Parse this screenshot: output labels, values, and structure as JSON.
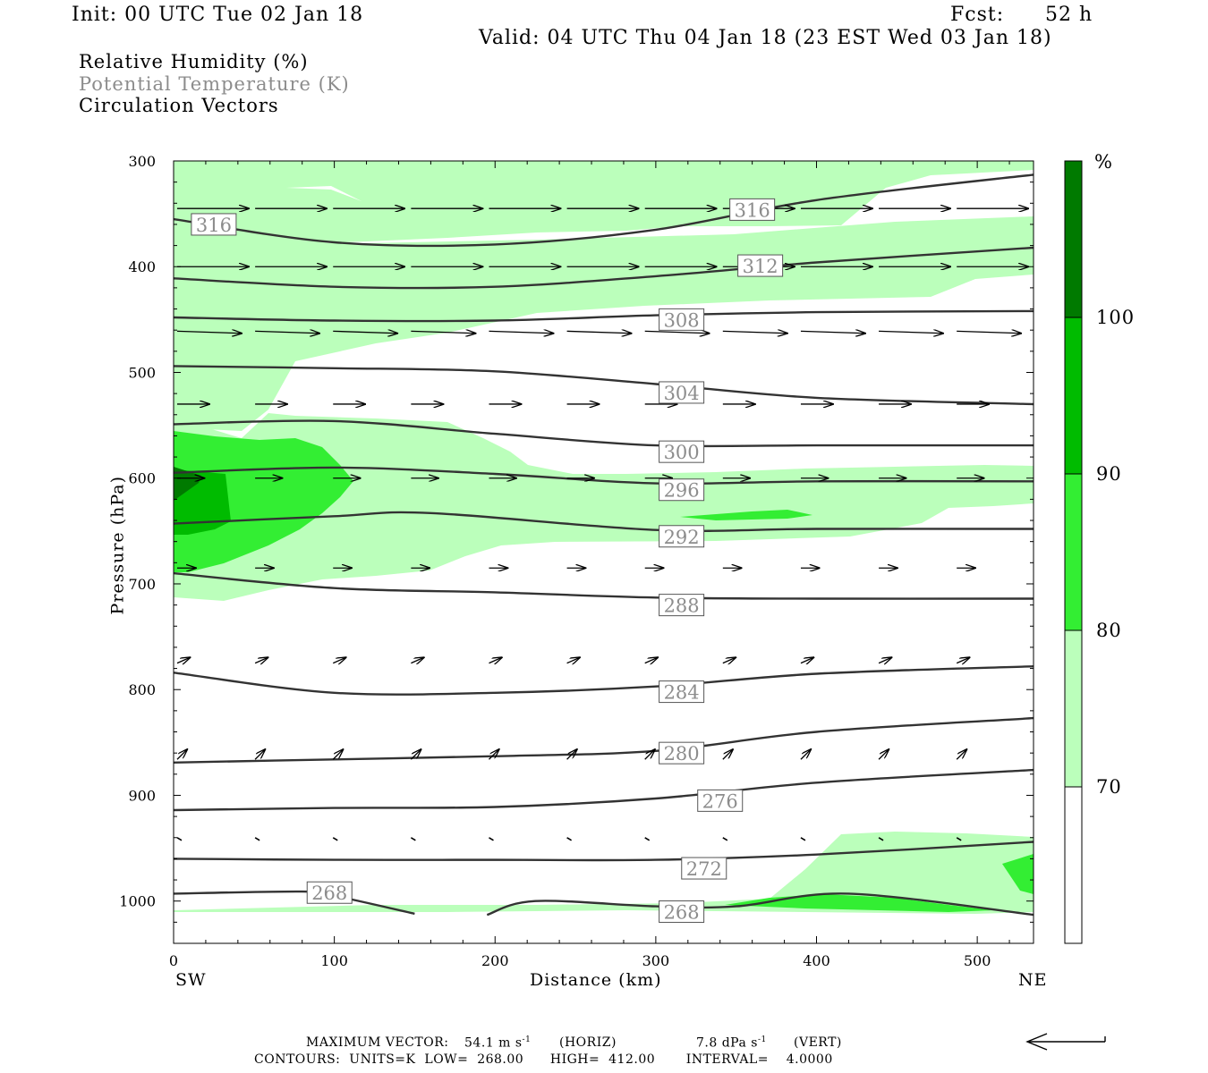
{
  "header": {
    "init": "Init: 00 UTC Tue 02 Jan 18",
    "fcst_label": "Fcst:",
    "fcst_value": "52 h",
    "valid": "Valid: 04 UTC Thu 04 Jan 18 (23 EST Wed 03 Jan 18)"
  },
  "legend": {
    "rh": "Relative Humidity (%)",
    "theta": "Potential Temperature (K)",
    "vectors": "Circulation Vectors"
  },
  "colors": {
    "rh_70_80": "#bbffbb",
    "rh_80_90": "#33ee33",
    "rh_90_100": "#00bb00",
    "rh_100": "#007a00",
    "contour": "#333333",
    "theta_label": "#8c8c8c"
  },
  "colorbar": {
    "unit": "%",
    "levels": [
      "70",
      "80",
      "90",
      "100"
    ]
  },
  "footer": {
    "max_vector_label": "MAXIMUM VECTOR:",
    "horiz_value": "54.1 m s",
    "horiz_tag": "(HORIZ)",
    "vert_value": "7.8 dPa s",
    "vert_tag": "(VERT)",
    "exponent": "-1",
    "contours": "CONTOURS:  UNITS=K  LOW=  268.00      HIGH=  412.00       INTERVAL=    4.0000"
  },
  "chart_data": {
    "type": "cross-section",
    "xlabel": "Distance (km)",
    "ylabel": "Pressure (hPa)",
    "x_end_labels": [
      "SW",
      "NE"
    ],
    "xlim": [
      0,
      535
    ],
    "ylim": [
      300,
      1040
    ],
    "y_scale": "linear (pressure, inverted)",
    "x_ticks": [
      0,
      100,
      200,
      300,
      400,
      500
    ],
    "y_ticks": [
      300,
      400,
      500,
      600,
      700,
      800,
      900,
      1000
    ],
    "grid": false,
    "theta_contours": [
      {
        "label": "316",
        "label_at": [
          25,
          360
        ],
        "points": [
          [
            0,
            355
          ],
          [
            100,
            377
          ],
          [
            200,
            379
          ],
          [
            300,
            365
          ],
          [
            400,
            337
          ],
          [
            535,
            313
          ]
        ]
      },
      {
        "label": "316",
        "label_at": [
          360,
          346
        ],
        "points": []
      },
      {
        "label": "312",
        "label_at": [
          365,
          399
        ],
        "points": [
          [
            0,
            411
          ],
          [
            100,
            419
          ],
          [
            200,
            419
          ],
          [
            300,
            409
          ],
          [
            400,
            396
          ],
          [
            535,
            382
          ]
        ]
      },
      {
        "label": "308",
        "label_at": [
          316,
          450
        ],
        "points": [
          [
            0,
            448
          ],
          [
            100,
            451
          ],
          [
            200,
            451
          ],
          [
            300,
            446
          ],
          [
            400,
            443
          ],
          [
            535,
            442
          ]
        ]
      },
      {
        "label": "304",
        "label_at": [
          316,
          519
        ],
        "points": [
          [
            0,
            494
          ],
          [
            100,
            496
          ],
          [
            200,
            499
          ],
          [
            300,
            511
          ],
          [
            400,
            524
          ],
          [
            535,
            530
          ]
        ]
      },
      {
        "label": "300",
        "label_at": [
          316,
          575
        ],
        "points": [
          [
            0,
            549
          ],
          [
            100,
            546
          ],
          [
            200,
            558
          ],
          [
            300,
            569
          ],
          [
            400,
            569
          ],
          [
            535,
            569
          ]
        ]
      },
      {
        "label": "296",
        "label_at": [
          316,
          611
        ],
        "points": [
          [
            0,
            595
          ],
          [
            100,
            590
          ],
          [
            200,
            596
          ],
          [
            300,
            605
          ],
          [
            400,
            603
          ],
          [
            535,
            603
          ]
        ]
      },
      {
        "label": "292",
        "label_at": [
          316,
          655
        ],
        "points": [
          [
            0,
            643
          ],
          [
            100,
            636
          ],
          [
            160,
            633
          ],
          [
            300,
            649
          ],
          [
            400,
            648
          ],
          [
            535,
            648
          ]
        ]
      },
      {
        "label": "288",
        "label_at": [
          316,
          720
        ],
        "points": [
          [
            0,
            690
          ],
          [
            100,
            704
          ],
          [
            200,
            708
          ],
          [
            300,
            713
          ],
          [
            400,
            714
          ],
          [
            535,
            714
          ]
        ]
      },
      {
        "label": "284",
        "label_at": [
          316,
          802
        ],
        "points": [
          [
            0,
            784
          ],
          [
            100,
            803
          ],
          [
            200,
            803
          ],
          [
            300,
            797
          ],
          [
            400,
            785
          ],
          [
            535,
            778
          ]
        ]
      },
      {
        "label": "280",
        "label_at": [
          316,
          860
        ],
        "points": [
          [
            0,
            869
          ],
          [
            100,
            866
          ],
          [
            200,
            863
          ],
          [
            300,
            858
          ],
          [
            400,
            840
          ],
          [
            535,
            827
          ]
        ]
      },
      {
        "label": "276",
        "label_at": [
          340,
          905
        ],
        "points": [
          [
            0,
            914
          ],
          [
            100,
            912
          ],
          [
            200,
            911
          ],
          [
            300,
            903
          ],
          [
            400,
            888
          ],
          [
            535,
            876
          ]
        ]
      },
      {
        "label": "272",
        "label_at": [
          330,
          969
        ],
        "points": [
          [
            0,
            960
          ],
          [
            100,
            961
          ],
          [
            200,
            961
          ],
          [
            300,
            961
          ],
          [
            400,
            956
          ],
          [
            535,
            944
          ]
        ]
      },
      {
        "label": "268",
        "label_at": [
          97,
          992
        ],
        "points": [
          [
            0,
            993
          ],
          [
            80,
            991
          ],
          [
            100,
            995
          ],
          [
            150,
            1012
          ]
        ]
      },
      {
        "label": "268",
        "label_at": [
          316,
          1010
        ],
        "points": [
          [
            195,
            1013
          ],
          [
            225,
            1000
          ],
          [
            300,
            1005
          ],
          [
            350,
            1005
          ],
          [
            420,
            993
          ],
          [
            535,
            1013
          ]
        ]
      }
    ],
    "rh_regions": [
      {
        "rh": "70-80",
        "desc": "upper band 300-480 hPa, broad moist layer 480-710 hPa, low-level patch 930-1020 hPa"
      },
      {
        "rh": "80-90",
        "desc": "SW core 555-710 hPa (0-110 km), thin band ~640 hPa near 340-400 km, near-surface strip 400-480 km"
      },
      {
        "rh": "90-100",
        "desc": "SW core 580-660 hPa (0-35 km)"
      },
      {
        "rh": ">=100",
        "desc": "small patch ~600-650 hPa at x=0"
      }
    ],
    "vector_rows": [
      {
        "p": 345,
        "u": 1.0,
        "w": 0.0
      },
      {
        "p": 400,
        "u": 1.0,
        "w": 0.0
      },
      {
        "p": 461,
        "u": 0.9,
        "w": -0.03
      },
      {
        "p": 530,
        "u": 0.45,
        "w": 0.0
      },
      {
        "p": 600,
        "u": 0.38,
        "w": 0.0
      },
      {
        "p": 685,
        "u": 0.26,
        "w": 0.0
      },
      {
        "p": 775,
        "u": 0.18,
        "w": 0.08
      },
      {
        "p": 866,
        "u": 0.14,
        "w": 0.14
      },
      {
        "p": 940,
        "u": 0.02,
        "w": -0.04
      }
    ],
    "max_vector_horiz_ms": 54.1,
    "max_vector_vert_dPas": 7.8,
    "contour_low": 268.0,
    "contour_high": 412.0,
    "contour_interval": 4.0
  }
}
